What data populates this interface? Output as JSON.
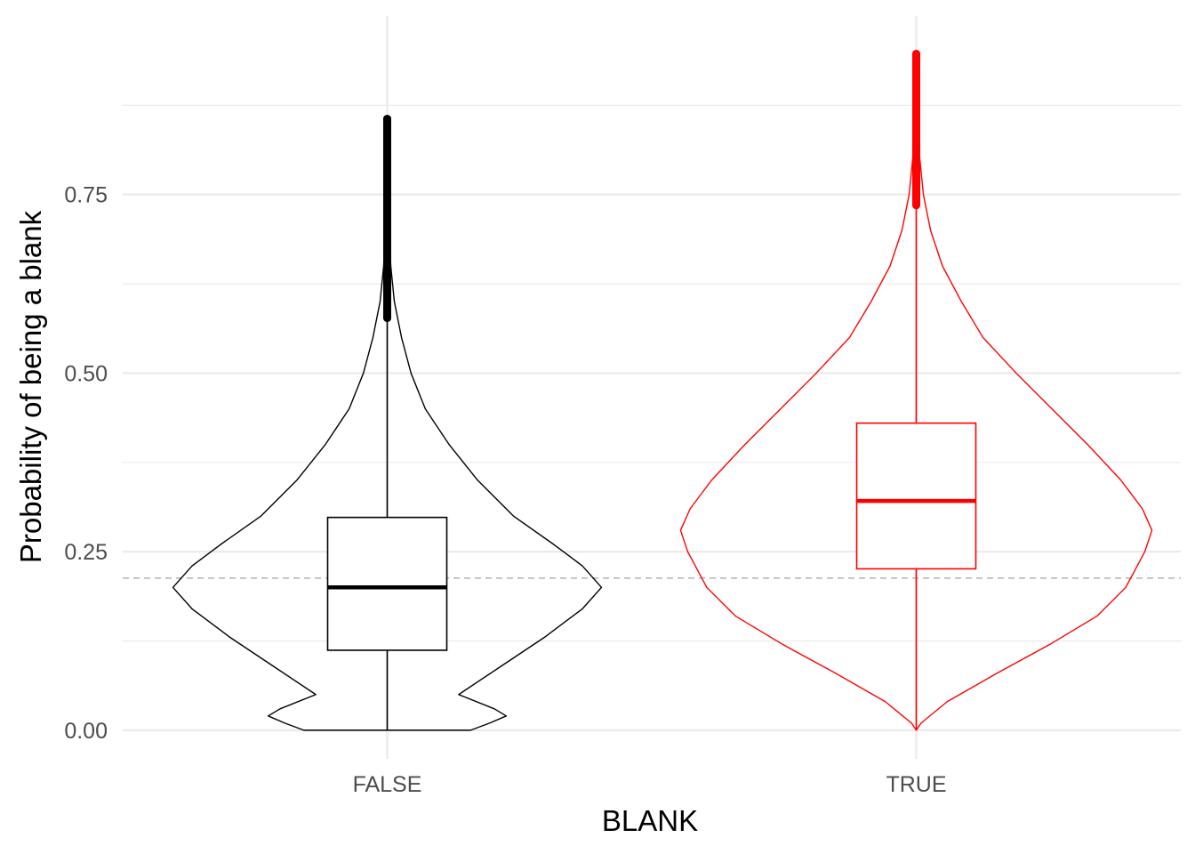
{
  "chart_data": {
    "type": "violin",
    "xlabel": "BLANK",
    "ylabel": "Probability of being a blank",
    "categories": [
      "FALSE",
      "TRUE"
    ],
    "ylim": [
      -0.04,
      1.0
    ],
    "y_ticks": [
      0.0,
      0.25,
      0.5,
      0.75
    ],
    "y_tick_labels": [
      "0.00",
      "0.25",
      "0.50",
      "0.75"
    ],
    "y_minor_ticks": [
      0.125,
      0.375,
      0.625,
      0.875
    ],
    "grid": true,
    "reference_line": {
      "y": 0.213,
      "style": "dashed",
      "color": "#b3b3b3"
    },
    "groups": [
      {
        "category": "FALSE",
        "color": "#000000",
        "box": {
          "q1": 0.112,
          "median": 0.2,
          "q3": 0.298,
          "whisker_low": 0.0,
          "whisker_high": 0.577
        },
        "outliers": {
          "from": 0.577,
          "to": 0.856
        },
        "density": [
          [
            0.0,
            0.35
          ],
          [
            0.01,
            0.43
          ],
          [
            0.02,
            0.5
          ],
          [
            0.03,
            0.45
          ],
          [
            0.05,
            0.3
          ],
          [
            0.09,
            0.48
          ],
          [
            0.13,
            0.66
          ],
          [
            0.17,
            0.82
          ],
          [
            0.2,
            0.9
          ],
          [
            0.23,
            0.82
          ],
          [
            0.26,
            0.7
          ],
          [
            0.3,
            0.53
          ],
          [
            0.35,
            0.38
          ],
          [
            0.4,
            0.26
          ],
          [
            0.45,
            0.16
          ],
          [
            0.5,
            0.1
          ],
          [
            0.55,
            0.06
          ],
          [
            0.6,
            0.03
          ],
          [
            0.65,
            0.015
          ],
          [
            0.7,
            0.008
          ],
          [
            0.75,
            0.004
          ],
          [
            0.8,
            0.002
          ],
          [
            0.856,
            0.0
          ]
        ]
      },
      {
        "category": "TRUE",
        "color": "#ff0000",
        "box": {
          "q1": 0.226,
          "median": 0.321,
          "q3": 0.43,
          "whisker_low": 0.0,
          "whisker_high": 0.735
        },
        "outliers": {
          "from": 0.735,
          "to": 0.947
        },
        "density": [
          [
            0.0,
            0.0
          ],
          [
            0.01,
            0.02
          ],
          [
            0.04,
            0.13
          ],
          [
            0.08,
            0.34
          ],
          [
            0.12,
            0.56
          ],
          [
            0.16,
            0.76
          ],
          [
            0.2,
            0.88
          ],
          [
            0.25,
            0.96
          ],
          [
            0.28,
            0.99
          ],
          [
            0.31,
            0.95
          ],
          [
            0.35,
            0.86
          ],
          [
            0.4,
            0.72
          ],
          [
            0.45,
            0.57
          ],
          [
            0.5,
            0.42
          ],
          [
            0.55,
            0.28
          ],
          [
            0.6,
            0.19
          ],
          [
            0.65,
            0.11
          ],
          [
            0.7,
            0.06
          ],
          [
            0.75,
            0.03
          ],
          [
            0.8,
            0.015
          ],
          [
            0.85,
            0.008
          ],
          [
            0.9,
            0.004
          ],
          [
            0.947,
            0.0
          ]
        ]
      }
    ]
  }
}
